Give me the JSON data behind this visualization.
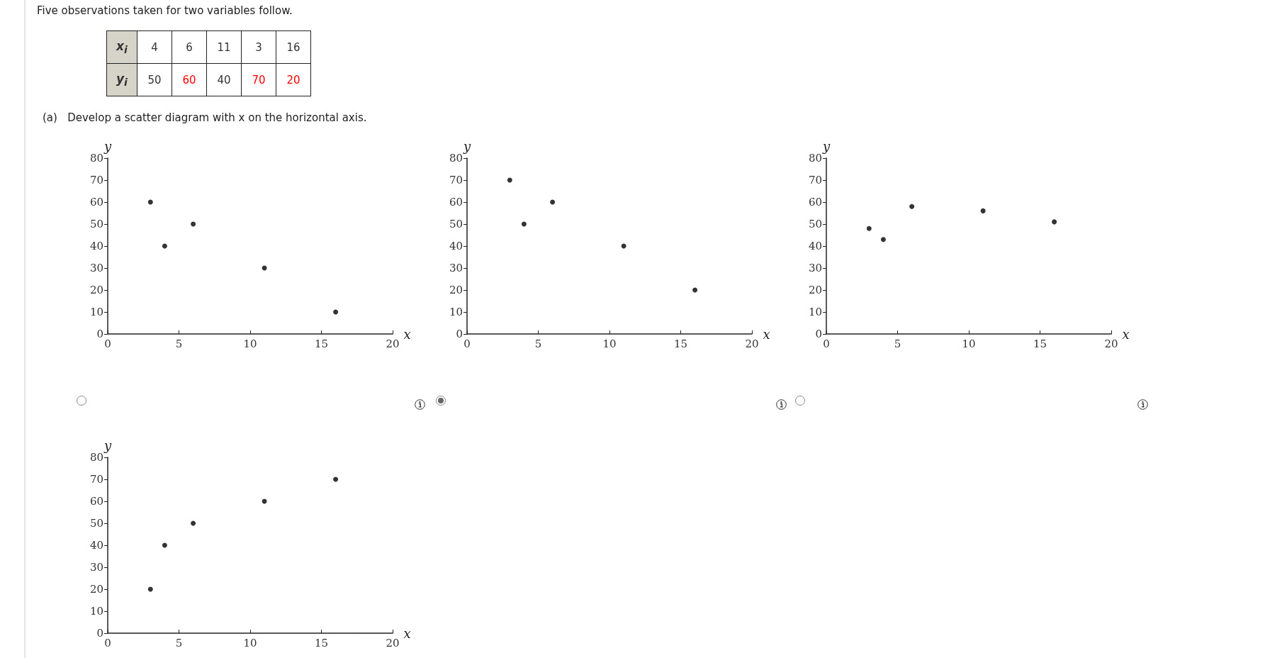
{
  "chart_data": [
    {
      "type": "other",
      "title": "Five observations taken for two variables follow.",
      "annotations": [
        "x$_{i}$",
        "4",
        "6",
        "11",
        "3",
        "16",
        "y$_{i}$",
        "50",
        "60",
        "40",
        "70",
        "20",
        "(a)   Develop a scatter diagram with x on the horizontal axis."
      ],
      "colors": [
        "#333333",
        "#333333",
        "#333333",
        "#333333",
        "#333333",
        "#333333",
        "#333333",
        "#333333",
        "#ff0000",
        "#333333",
        "#ff0000",
        "#ff0000",
        "#222222"
      ]
    },
    {
      "type": "scatter",
      "x": [
        3,
        4,
        6,
        11,
        16
      ],
      "values": [
        60,
        40,
        50,
        30,
        10
      ],
      "color": "#000000",
      "marker": "circle",
      "xlabel": "x",
      "ylabel": "y",
      "xlim": [
        0,
        20
      ],
      "xticks": [
        0,
        5,
        10,
        15,
        20
      ],
      "ylim": [
        0,
        80
      ],
      "yticks": [
        0,
        10,
        20,
        30,
        40,
        50,
        60,
        70,
        80
      ],
      "grid": false
    },
    {
      "type": "scatter",
      "x": [
        3,
        4,
        6,
        11,
        16
      ],
      "values": [
        70,
        50,
        60,
        40,
        20
      ],
      "color": "#000000",
      "marker": "circle",
      "xlabel": "x",
      "ylabel": "y",
      "xlim": [
        0,
        20
      ],
      "xticks": [
        0,
        5,
        10,
        15,
        20
      ],
      "ylim": [
        0,
        80
      ],
      "yticks": [
        0,
        10,
        20,
        30,
        40,
        50,
        60,
        70,
        80
      ],
      "grid": false
    },
    {
      "type": "scatter",
      "x": [
        3,
        4,
        6,
        11,
        16
      ],
      "values": [
        48,
        43,
        58,
        56,
        51
      ],
      "color": "#000000",
      "marker": "circle",
      "xlabel": "x",
      "ylabel": "y",
      "xlim": [
        0,
        20
      ],
      "xticks": [
        0,
        5,
        10,
        15,
        20
      ],
      "ylim": [
        0,
        80
      ],
      "yticks": [
        0,
        10,
        20,
        30,
        40,
        50,
        60,
        70,
        80
      ],
      "grid": false
    },
    {
      "type": "scatter",
      "x": [
        3,
        4,
        6,
        11,
        16
      ],
      "values": [
        20,
        40,
        50,
        60,
        70
      ],
      "color": "#000000",
      "marker": "circle",
      "xlabel": "x",
      "ylabel": "y",
      "xlim": [
        0,
        20
      ],
      "xticks": [
        0,
        5,
        10,
        15,
        20
      ],
      "ylim": [
        0,
        80
      ],
      "yticks": [
        0,
        10,
        20,
        30,
        40,
        50,
        60,
        70,
        80
      ],
      "grid": false
    }
  ]
}
